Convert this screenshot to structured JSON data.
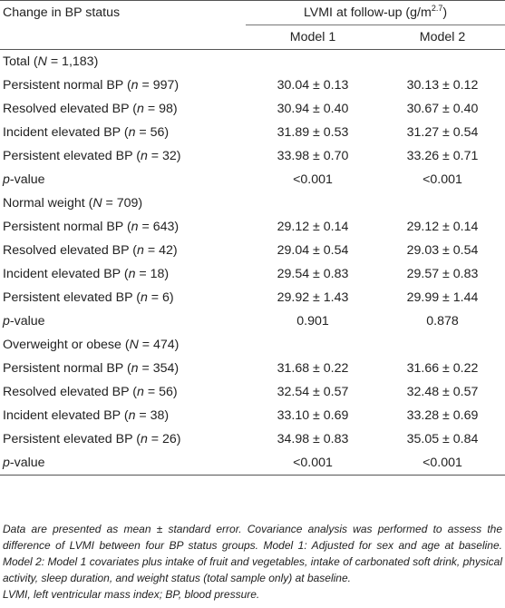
{
  "header": {
    "col1": "Change in BP status",
    "group_main": "LVMI at follow-up (g/m",
    "group_sup": "2.7",
    "group_close": ")",
    "model1": "Model 1",
    "model2": "Model 2"
  },
  "sections": [
    {
      "title_pre": "Total (",
      "title_n": "N",
      "title_post": " = 1,183)",
      "rows": [
        {
          "label": "Persistent normal BP (",
          "n": "n",
          "count": " = 997)",
          "m1": "30.04 ± 0.13",
          "m2": "30.13 ± 0.12"
        },
        {
          "label": "Resolved elevated BP (",
          "n": "n",
          "count": " = 98)",
          "m1": "30.94 ± 0.40",
          "m2": "30.67 ± 0.40"
        },
        {
          "label": "Incident elevated BP (",
          "n": "n",
          "count": " = 56)",
          "m1": "31.89 ± 0.53",
          "m2": "31.27 ± 0.54"
        },
        {
          "label": "Persistent elevated BP (",
          "n": "n",
          "count": " = 32)",
          "m1": "33.98 ± 0.70",
          "m2": "33.26 ± 0.71"
        }
      ],
      "p_label": "p",
      "p_suffix": "-value",
      "p_m1": "<0.001",
      "p_m2": "<0.001"
    },
    {
      "title_pre": "Normal weight (",
      "title_n": "N",
      "title_post": " = 709)",
      "rows": [
        {
          "label": "Persistent normal BP (",
          "n": "n",
          "count": " = 643)",
          "m1": "29.12 ± 0.14",
          "m2": "29.12 ± 0.14"
        },
        {
          "label": "Resolved elevated BP (",
          "n": "n",
          "count": " = 42)",
          "m1": "29.04 ± 0.54",
          "m2": "29.03 ± 0.54"
        },
        {
          "label": "Incident elevated BP (",
          "n": "n",
          "count": " = 18)",
          "m1": "29.54 ± 0.83",
          "m2": "29.57 ± 0.83"
        },
        {
          "label": "Persistent elevated BP (",
          "n": "n",
          "count": " = 6)",
          "m1": "29.92 ± 1.43",
          "m2": "29.99 ± 1.44"
        }
      ],
      "p_label": "p",
      "p_suffix": "-value",
      "p_m1": "0.901",
      "p_m2": "0.878"
    },
    {
      "title_pre": "Overweight or obese (",
      "title_n": "N",
      "title_post": " = 474)",
      "rows": [
        {
          "label": "Persistent normal BP (",
          "n": "n",
          "count": " = 354)",
          "m1": "31.68 ± 0.22",
          "m2": "31.66 ± 0.22"
        },
        {
          "label": "Resolved elevated BP (",
          "n": "n",
          "count": " = 56)",
          "m1": "32.54 ± 0.57",
          "m2": "32.48 ± 0.57"
        },
        {
          "label": "Incident elevated BP (",
          "n": "n",
          "count": " = 38)",
          "m1": "33.10 ± 0.69",
          "m2": "33.28 ± 0.69"
        },
        {
          "label": "Persistent elevated BP (",
          "n": "n",
          "count": " = 26)",
          "m1": "34.98 ± 0.83",
          "m2": "35.05 ± 0.84"
        }
      ],
      "p_label": "p",
      "p_suffix": "-value",
      "p_m1": "<0.001",
      "p_m2": "<0.001"
    }
  ],
  "footnote": {
    "main": "Data are presented as mean ± standard error. Covariance analysis was performed to assess the difference of LVMI between four BP status groups. Model 1: Adjusted for sex and age at baseline. Model 2: Model 1 covariates plus intake of fruit and vegetables, intake of carbonated soft drink, physical activity, sleep duration, and weight status (total sample only) at baseline.",
    "abbrev": "LVMI, left ventricular mass index; BP, blood pressure."
  }
}
